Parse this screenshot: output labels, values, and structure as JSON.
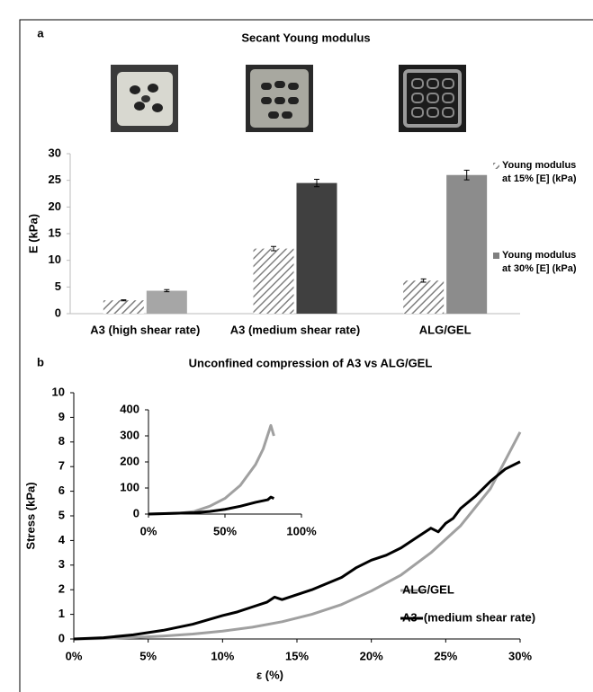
{
  "chart_data": [
    {
      "type": "bar",
      "panel": "a",
      "title": "Secant Young modulus",
      "y_label": "E (kPa)",
      "categories": [
        "A3 (high shear rate)",
        "A3 (medium shear rate)",
        "ALG/GEL"
      ],
      "series": [
        {
          "name": "Young modulus at 15% [E] (kPa)",
          "color": "#808080",
          "hatch": true,
          "values": [
            2.5,
            12.2,
            6.2
          ],
          "errors": [
            0.1,
            0.4,
            0.3
          ]
        },
        {
          "name": "Young modulus at 30% [E] (kPa)",
          "color": "#808080",
          "colors": [
            "#a6a6a6",
            "#404040",
            "#8c8c8c"
          ],
          "values": [
            4.3,
            24.5,
            26
          ],
          "errors": [
            0.2,
            0.7,
            0.9
          ]
        }
      ],
      "ylim": [
        0,
        30
      ],
      "yticks": [
        0,
        5,
        10,
        15,
        20,
        25,
        30
      ],
      "legend": "right"
    },
    {
      "type": "line",
      "panel": "b",
      "title": "Unconfined compression of A3 vs ALG/GEL",
      "x_label": "ε (%)",
      "y_label": "Stress (kPa)",
      "series": [
        {
          "name": "ALG/GEL",
          "color": "#a0a0a0",
          "x": [
            0,
            2,
            4,
            6,
            8,
            10,
            12,
            14,
            16,
            18,
            20,
            22,
            24,
            26,
            28,
            30
          ],
          "values": [
            0,
            0.02,
            0.06,
            0.12,
            0.2,
            0.32,
            0.48,
            0.7,
            1.0,
            1.4,
            1.95,
            2.6,
            3.5,
            4.6,
            6.1,
            8.4
          ]
        },
        {
          "name": "A3  (medium shear rate)",
          "color": "#000000",
          "x": [
            0,
            2,
            4,
            6,
            8,
            10,
            11,
            12,
            13,
            13.5,
            14,
            15,
            16,
            17,
            18,
            19,
            20,
            21,
            22,
            23,
            24,
            24.5,
            25,
            25.5,
            26,
            27,
            28,
            29,
            30
          ],
          "values": [
            0,
            0.05,
            0.17,
            0.35,
            0.6,
            0.95,
            1.1,
            1.3,
            1.5,
            1.7,
            1.6,
            1.8,
            2.0,
            2.25,
            2.5,
            2.9,
            3.2,
            3.4,
            3.7,
            4.1,
            4.5,
            4.35,
            4.7,
            4.9,
            5.3,
            5.8,
            6.4,
            6.9,
            7.2
          ]
        }
      ],
      "xlim": [
        0,
        30
      ],
      "xticks": [
        {
          "value": 0,
          "label": "0%"
        },
        {
          "value": 5,
          "label": "5%"
        },
        {
          "value": 10,
          "label": "10%"
        },
        {
          "value": 15,
          "label": "15%"
        },
        {
          "value": 20,
          "label": "20%"
        },
        {
          "value": 25,
          "label": "25%"
        },
        {
          "value": 30,
          "label": "30%"
        }
      ],
      "ylim": [
        0,
        10
      ],
      "yticks": [
        0,
        1,
        2,
        3,
        4,
        5,
        6,
        7,
        8,
        9,
        10
      ],
      "legend": "lower right"
    },
    {
      "type": "line",
      "series": [
        {
          "color": "#a0a0a0",
          "x": [
            0,
            20,
            30,
            40,
            50,
            60,
            70,
            75,
            80,
            82
          ],
          "values": [
            0,
            3,
            10,
            30,
            60,
            110,
            190,
            250,
            340,
            300
          ]
        },
        {
          "color": "#000000",
          "x": [
            0,
            30,
            40,
            50,
            60,
            70,
            78,
            80,
            82
          ],
          "values": [
            0,
            5,
            10,
            18,
            30,
            45,
            55,
            65,
            60
          ]
        }
      ],
      "xlim": [
        0,
        100
      ],
      "xticks": [
        {
          "value": 0,
          "label": "0%"
        },
        {
          "value": 50,
          "label": "50%"
        },
        {
          "value": 100,
          "label": "100%"
        }
      ],
      "ylim": [
        0,
        400
      ],
      "yticks": [
        0,
        100,
        200,
        300,
        400
      ]
    }
  ]
}
